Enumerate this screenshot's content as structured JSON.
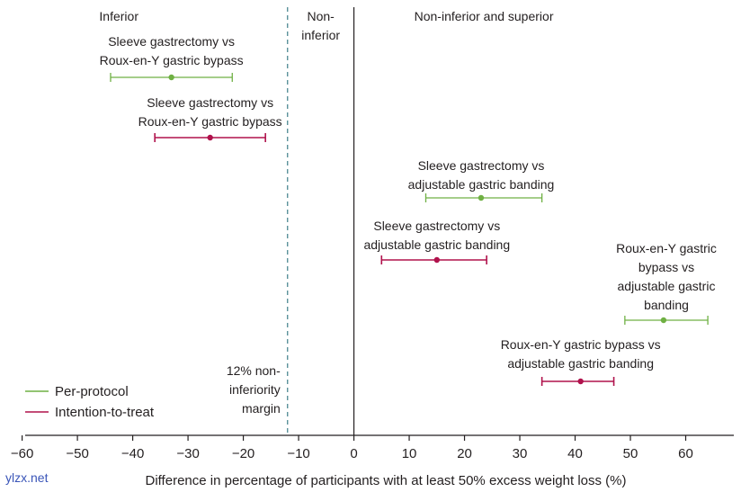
{
  "chart_data": {
    "type": "forest",
    "xlabel": "Difference in percentage of participants with at least 50% excess weight loss (%)",
    "xlim": [
      -64,
      70
    ],
    "xticks": [
      -60,
      -50,
      -40,
      -30,
      -20,
      -10,
      0,
      10,
      20,
      30,
      40,
      50,
      60
    ],
    "region_labels": {
      "inferior": "Inferior",
      "non_inferior": [
        "Non-",
        "inferior"
      ],
      "superior": "Non-inferior and superior"
    },
    "margin": {
      "value": -12,
      "label": [
        "12% non-",
        "inferiority",
        "margin"
      ]
    },
    "zero_line": 0,
    "colors": {
      "per_protocol": "#6fb043",
      "intention_to_treat": "#b0124c",
      "axis": "#231f20"
    },
    "legend": [
      {
        "name": "Per-protocol",
        "color_key": "per_protocol"
      },
      {
        "name": "Intention-to-treat",
        "color_key": "intention_to_treat"
      }
    ],
    "series": [
      {
        "comparison": [
          "Sleeve gastrectomy vs",
          "Roux-en-Y gastric bypass"
        ],
        "analysis": "per_protocol",
        "estimate": -33,
        "ci_low": -44,
        "ci_high": -22
      },
      {
        "comparison": [
          "Sleeve gastrectomy vs",
          "Roux-en-Y gastric bypass"
        ],
        "analysis": "intention_to_treat",
        "estimate": -26,
        "ci_low": -36,
        "ci_high": -16
      },
      {
        "comparison": [
          "Sleeve gastrectomy vs",
          "adjustable gastric banding"
        ],
        "analysis": "per_protocol",
        "estimate": 23,
        "ci_low": 13,
        "ci_high": 34
      },
      {
        "comparison": [
          "Sleeve gastrectomy vs",
          "adjustable gastric banding"
        ],
        "analysis": "intention_to_treat",
        "estimate": 15,
        "ci_low": 5,
        "ci_high": 24
      },
      {
        "comparison": [
          "Roux-en-Y gastric",
          "bypass vs",
          "adjustable gastric",
          "banding"
        ],
        "analysis": "per_protocol",
        "estimate": 56,
        "ci_low": 49,
        "ci_high": 64
      },
      {
        "comparison": [
          "Roux-en-Y gastric bypass vs",
          "adjustable gastric banding"
        ],
        "analysis": "intention_to_treat",
        "estimate": 41,
        "ci_low": 34,
        "ci_high": 47
      }
    ]
  },
  "watermark": "ylzx.net"
}
